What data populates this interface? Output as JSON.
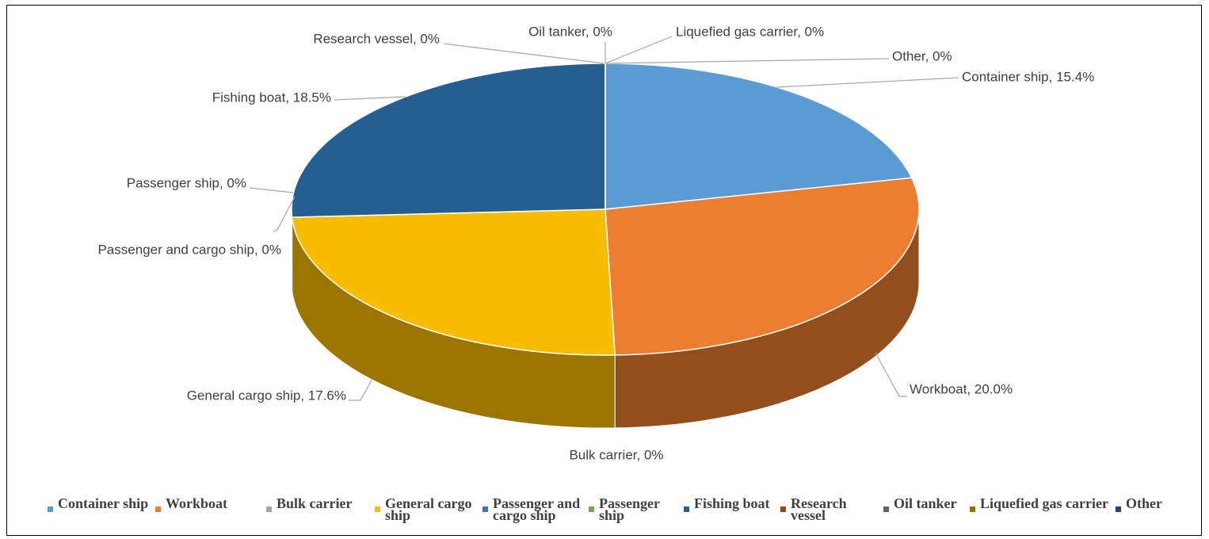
{
  "chart_data": {
    "type": "pie3d",
    "categories": [
      "Container ship",
      "Workboat",
      "Bulk carrier",
      "General cargo ship",
      "Passenger and cargo ship",
      "Passenger ship",
      "Fishing boat",
      "Research vessel",
      "Oil tanker",
      "Liquefied gas carrier",
      "Other"
    ],
    "values": [
      15.4,
      20.0,
      0,
      17.6,
      0,
      0,
      18.5,
      0,
      0,
      0,
      0
    ],
    "value_labels": [
      "Container ship, 15.4%",
      "Workboat, 20.0%",
      "Bulk carrier, 0%",
      "General cargo ship, 17.6%",
      "Passenger and cargo ship, 0%",
      "Passenger ship, 0%",
      "Fishing boat, 18.5%",
      "Research vessel, 0%",
      "Oil tanker, 0%",
      "Liquefied gas carrier, 0%",
      "Other, 0%"
    ],
    "colors": [
      "#5b9bd5",
      "#ed7d31",
      "#a5a5a5",
      "#f8bc00",
      "#4472c4",
      "#70ad47",
      "#255e91",
      "#9e480e",
      "#636363",
      "#997300",
      "#264478"
    ],
    "legend": "bottom"
  }
}
